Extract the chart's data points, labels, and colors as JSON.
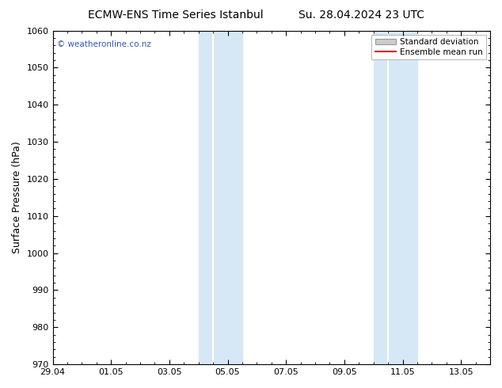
{
  "title_left": "ECMW-ENS Time Series Istanbul",
  "title_right": "Su. 28.04.2024 23 UTC",
  "ylabel": "Surface Pressure (hPa)",
  "ylim": [
    970,
    1060
  ],
  "yticks": [
    970,
    980,
    990,
    1000,
    1010,
    1020,
    1030,
    1040,
    1050,
    1060
  ],
  "xlim": [
    0,
    15
  ],
  "xtick_labels": [
    "29.04",
    "01.05",
    "03.05",
    "05.05",
    "07.05",
    "09.05",
    "11.05",
    "13.05"
  ],
  "xtick_positions": [
    0,
    2,
    4,
    6,
    8,
    10,
    12,
    14
  ],
  "shaded_bands": [
    {
      "x_start": 5.0,
      "x_mid": 5.5,
      "x_end": 6.5
    },
    {
      "x_start": 11.0,
      "x_mid": 11.5,
      "x_end": 12.5
    }
  ],
  "shade_color": "#d6e8f5",
  "watermark_text": "© weatheronline.co.nz",
  "watermark_color": "#3355bb",
  "legend_entries": [
    "Standard deviation",
    "Ensemble mean run"
  ],
  "legend_colors": [
    "#cccccc",
    "#dd2200"
  ],
  "background_color": "#ffffff",
  "title_fontsize": 10,
  "axis_label_fontsize": 9,
  "tick_fontsize": 8
}
